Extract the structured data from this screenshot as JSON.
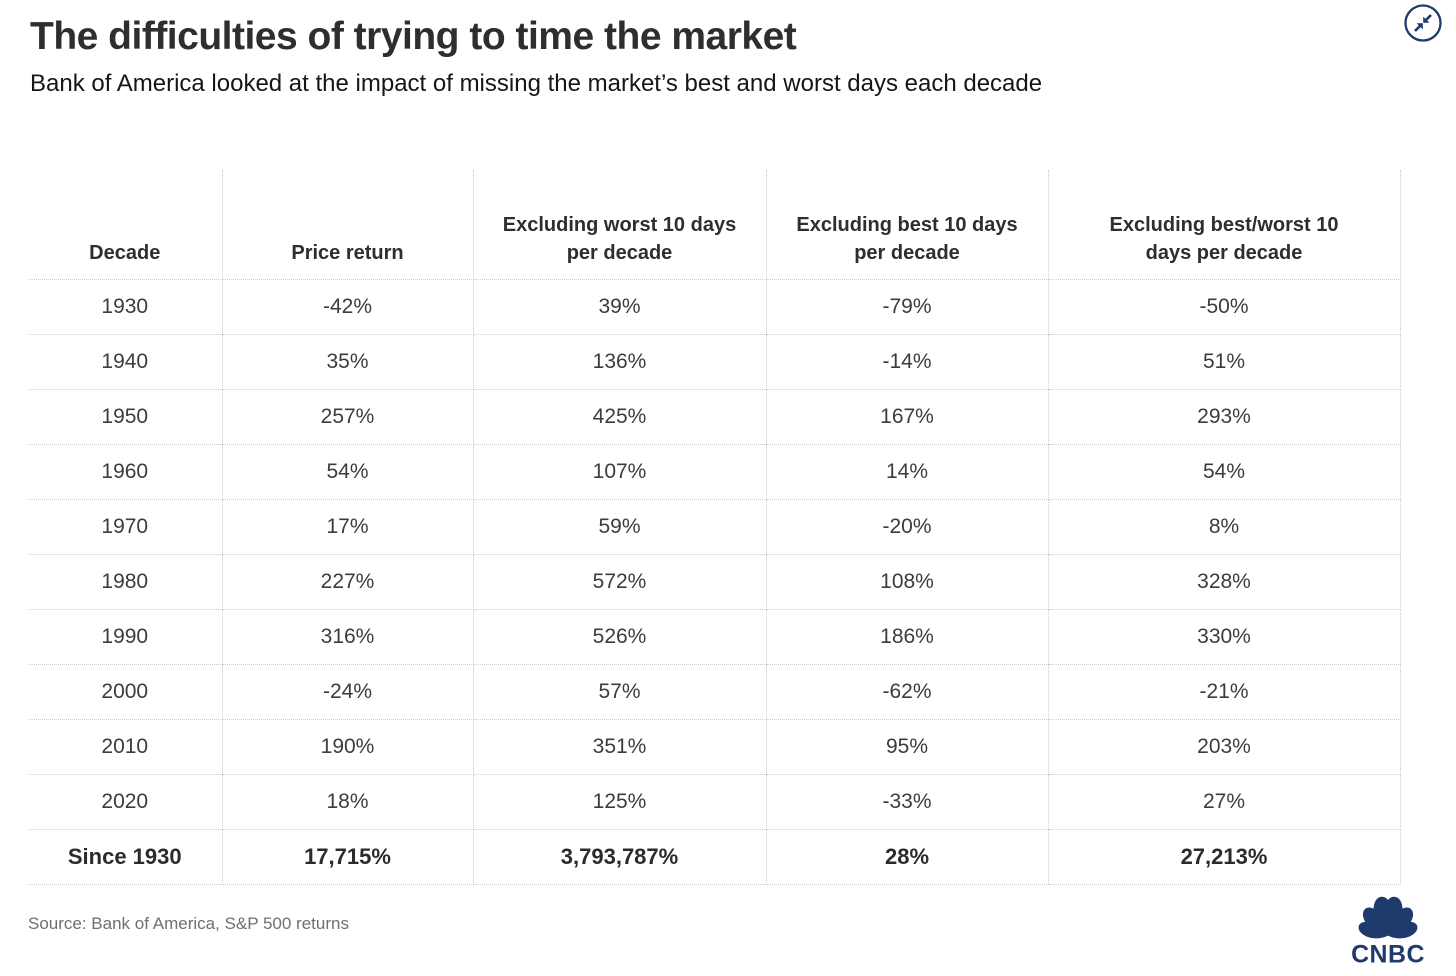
{
  "brand": {
    "navy": "#1f3a6d",
    "line_color": "#cccccc",
    "text_dark": "#2e2e2e",
    "text_body": "#3c3c3c",
    "source_gray": "#6f6f6f"
  },
  "header": {
    "title": "The difficulties of trying to time the market",
    "subtitle": "Bank of America looked at the impact of missing the market’s best and worst days each decade"
  },
  "chart_data": {
    "type": "table",
    "title": "The difficulties of trying to time the market",
    "subtitle": "Bank of America looked at the impact of missing the market’s best and worst days each decade",
    "columns": [
      "Decade",
      "Price return",
      "Excluding worst 10 days per decade",
      "Excluding best 10 days per decade",
      "Excluding best/worst 10 days per decade"
    ],
    "rows": [
      [
        "1930",
        "-42%",
        "39%",
        "-79%",
        "-50%"
      ],
      [
        "1940",
        "35%",
        "136%",
        "-14%",
        "51%"
      ],
      [
        "1950",
        "257%",
        "425%",
        "167%",
        "293%"
      ],
      [
        "1960",
        "54%",
        "107%",
        "14%",
        "54%"
      ],
      [
        "1970",
        "17%",
        "59%",
        "-20%",
        "8%"
      ],
      [
        "1980",
        "227%",
        "572%",
        "108%",
        "328%"
      ],
      [
        "1990",
        "316%",
        "526%",
        "186%",
        "330%"
      ],
      [
        "2000",
        "-24%",
        "57%",
        "-62%",
        "-21%"
      ],
      [
        "2010",
        "190%",
        "351%",
        "95%",
        "203%"
      ],
      [
        "2020",
        "18%",
        "125%",
        "-33%",
        "27%"
      ],
      [
        "Since 1930",
        "17,715%",
        "3,793,787%",
        "28%",
        "27,213%"
      ]
    ],
    "source": "Source: Bank of America, S&P 500 returns"
  },
  "footer": {
    "source": "Source: Bank of America, S&P 500 returns",
    "logo_text": "CNBC"
  }
}
